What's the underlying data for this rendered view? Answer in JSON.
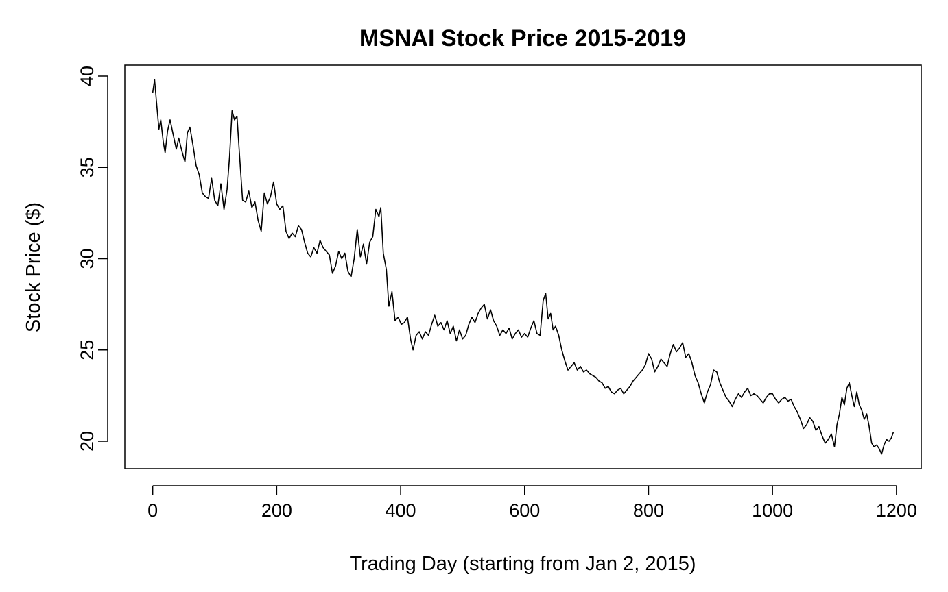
{
  "chart_data": {
    "type": "line",
    "title": "MSNAI Stock Price 2015-2019",
    "xlabel": "Trading Day (starting from Jan 2, 2015)",
    "ylabel": "Stock Price ($)",
    "xlim": [
      -45,
      1240
    ],
    "ylim": [
      18.5,
      40.6
    ],
    "x_ticks": [
      0,
      200,
      400,
      600,
      800,
      1000,
      1200
    ],
    "y_ticks": [
      20,
      25,
      30,
      35,
      40
    ],
    "grid": false,
    "legend": "none",
    "series": [
      {
        "color": "#000000",
        "points": [
          [
            0,
            39.1
          ],
          [
            3,
            39.8
          ],
          [
            6,
            38.6
          ],
          [
            10,
            37.1
          ],
          [
            13,
            37.6
          ],
          [
            17,
            36.4
          ],
          [
            20,
            35.8
          ],
          [
            24,
            37.0
          ],
          [
            28,
            37.6
          ],
          [
            33,
            36.8
          ],
          [
            38,
            36.0
          ],
          [
            42,
            36.6
          ],
          [
            47,
            35.9
          ],
          [
            52,
            35.3
          ],
          [
            56,
            36.9
          ],
          [
            60,
            37.2
          ],
          [
            65,
            36.2
          ],
          [
            70,
            35.1
          ],
          [
            75,
            34.6
          ],
          [
            80,
            33.6
          ],
          [
            85,
            33.4
          ],
          [
            90,
            33.3
          ],
          [
            95,
            34.4
          ],
          [
            100,
            33.2
          ],
          [
            105,
            32.9
          ],
          [
            110,
            34.1
          ],
          [
            115,
            32.7
          ],
          [
            120,
            33.8
          ],
          [
            124,
            35.6
          ],
          [
            128,
            38.1
          ],
          [
            132,
            37.6
          ],
          [
            136,
            37.8
          ],
          [
            140,
            35.7
          ],
          [
            145,
            33.2
          ],
          [
            150,
            33.1
          ],
          [
            155,
            33.7
          ],
          [
            160,
            32.8
          ],
          [
            165,
            33.1
          ],
          [
            170,
            32.1
          ],
          [
            175,
            31.5
          ],
          [
            180,
            33.6
          ],
          [
            185,
            33.0
          ],
          [
            190,
            33.4
          ],
          [
            195,
            34.2
          ],
          [
            200,
            33.0
          ],
          [
            205,
            32.7
          ],
          [
            210,
            32.9
          ],
          [
            215,
            31.5
          ],
          [
            220,
            31.1
          ],
          [
            225,
            31.4
          ],
          [
            230,
            31.2
          ],
          [
            235,
            31.8
          ],
          [
            240,
            31.6
          ],
          [
            245,
            30.9
          ],
          [
            250,
            30.3
          ],
          [
            255,
            30.1
          ],
          [
            260,
            30.6
          ],
          [
            265,
            30.3
          ],
          [
            270,
            31.0
          ],
          [
            275,
            30.6
          ],
          [
            280,
            30.4
          ],
          [
            285,
            30.2
          ],
          [
            290,
            29.2
          ],
          [
            295,
            29.6
          ],
          [
            300,
            30.4
          ],
          [
            305,
            30.0
          ],
          [
            310,
            30.3
          ],
          [
            315,
            29.3
          ],
          [
            320,
            29.0
          ],
          [
            325,
            30.0
          ],
          [
            330,
            31.6
          ],
          [
            335,
            30.1
          ],
          [
            340,
            30.8
          ],
          [
            345,
            29.7
          ],
          [
            350,
            30.9
          ],
          [
            355,
            31.2
          ],
          [
            360,
            32.7
          ],
          [
            365,
            32.3
          ],
          [
            368,
            32.8
          ],
          [
            372,
            30.3
          ],
          [
            377,
            29.4
          ],
          [
            381,
            27.4
          ],
          [
            386,
            28.2
          ],
          [
            391,
            26.6
          ],
          [
            396,
            26.8
          ],
          [
            401,
            26.4
          ],
          [
            406,
            26.5
          ],
          [
            411,
            26.8
          ],
          [
            416,
            25.6
          ],
          [
            420,
            25.0
          ],
          [
            425,
            25.8
          ],
          [
            430,
            26.0
          ],
          [
            435,
            25.6
          ],
          [
            440,
            26.0
          ],
          [
            445,
            25.8
          ],
          [
            450,
            26.4
          ],
          [
            455,
            26.9
          ],
          [
            460,
            26.3
          ],
          [
            465,
            26.5
          ],
          [
            470,
            26.1
          ],
          [
            475,
            26.6
          ],
          [
            480,
            25.9
          ],
          [
            485,
            26.3
          ],
          [
            490,
            25.5
          ],
          [
            495,
            26.1
          ],
          [
            500,
            25.6
          ],
          [
            505,
            25.8
          ],
          [
            510,
            26.4
          ],
          [
            515,
            26.8
          ],
          [
            520,
            26.5
          ],
          [
            525,
            27.0
          ],
          [
            530,
            27.3
          ],
          [
            535,
            27.5
          ],
          [
            540,
            26.7
          ],
          [
            545,
            27.2
          ],
          [
            550,
            26.6
          ],
          [
            555,
            26.3
          ],
          [
            560,
            25.8
          ],
          [
            565,
            26.1
          ],
          [
            570,
            25.9
          ],
          [
            575,
            26.2
          ],
          [
            580,
            25.6
          ],
          [
            585,
            25.9
          ],
          [
            590,
            26.1
          ],
          [
            595,
            25.7
          ],
          [
            600,
            25.9
          ],
          [
            605,
            25.7
          ],
          [
            610,
            26.2
          ],
          [
            615,
            26.6
          ],
          [
            620,
            25.9
          ],
          [
            625,
            25.8
          ],
          [
            630,
            27.7
          ],
          [
            634,
            28.1
          ],
          [
            638,
            26.7
          ],
          [
            642,
            27.0
          ],
          [
            646,
            26.1
          ],
          [
            650,
            26.3
          ],
          [
            655,
            25.8
          ],
          [
            660,
            25.0
          ],
          [
            665,
            24.4
          ],
          [
            670,
            23.9
          ],
          [
            675,
            24.1
          ],
          [
            680,
            24.3
          ],
          [
            685,
            23.9
          ],
          [
            690,
            24.1
          ],
          [
            695,
            23.8
          ],
          [
            700,
            23.9
          ],
          [
            705,
            23.7
          ],
          [
            710,
            23.6
          ],
          [
            715,
            23.5
          ],
          [
            720,
            23.3
          ],
          [
            725,
            23.2
          ],
          [
            730,
            22.9
          ],
          [
            735,
            23.0
          ],
          [
            740,
            22.7
          ],
          [
            745,
            22.6
          ],
          [
            750,
            22.8
          ],
          [
            755,
            22.9
          ],
          [
            760,
            22.6
          ],
          [
            765,
            22.8
          ],
          [
            770,
            23.0
          ],
          [
            775,
            23.3
          ],
          [
            780,
            23.5
          ],
          [
            785,
            23.7
          ],
          [
            790,
            23.9
          ],
          [
            795,
            24.2
          ],
          [
            800,
            24.8
          ],
          [
            805,
            24.5
          ],
          [
            810,
            23.8
          ],
          [
            815,
            24.1
          ],
          [
            820,
            24.5
          ],
          [
            825,
            24.3
          ],
          [
            830,
            24.1
          ],
          [
            835,
            24.8
          ],
          [
            840,
            25.3
          ],
          [
            845,
            24.9
          ],
          [
            850,
            25.1
          ],
          [
            855,
            25.4
          ],
          [
            860,
            24.6
          ],
          [
            865,
            24.8
          ],
          [
            870,
            24.3
          ],
          [
            875,
            23.6
          ],
          [
            880,
            23.2
          ],
          [
            885,
            22.6
          ],
          [
            890,
            22.1
          ],
          [
            895,
            22.7
          ],
          [
            900,
            23.1
          ],
          [
            905,
            23.9
          ],
          [
            910,
            23.8
          ],
          [
            915,
            23.2
          ],
          [
            920,
            22.8
          ],
          [
            925,
            22.4
          ],
          [
            930,
            22.2
          ],
          [
            935,
            21.9
          ],
          [
            940,
            22.3
          ],
          [
            945,
            22.6
          ],
          [
            950,
            22.4
          ],
          [
            955,
            22.7
          ],
          [
            960,
            22.9
          ],
          [
            965,
            22.5
          ],
          [
            970,
            22.6
          ],
          [
            975,
            22.5
          ],
          [
            980,
            22.3
          ],
          [
            985,
            22.1
          ],
          [
            990,
            22.4
          ],
          [
            995,
            22.6
          ],
          [
            1000,
            22.6
          ],
          [
            1005,
            22.3
          ],
          [
            1010,
            22.1
          ],
          [
            1015,
            22.3
          ],
          [
            1020,
            22.4
          ],
          [
            1025,
            22.2
          ],
          [
            1030,
            22.3
          ],
          [
            1035,
            21.9
          ],
          [
            1040,
            21.6
          ],
          [
            1045,
            21.2
          ],
          [
            1050,
            20.7
          ],
          [
            1055,
            20.9
          ],
          [
            1060,
            21.3
          ],
          [
            1065,
            21.1
          ],
          [
            1070,
            20.6
          ],
          [
            1075,
            20.8
          ],
          [
            1080,
            20.3
          ],
          [
            1085,
            19.9
          ],
          [
            1090,
            20.1
          ],
          [
            1095,
            20.4
          ],
          [
            1100,
            19.7
          ],
          [
            1104,
            20.9
          ],
          [
            1108,
            21.5
          ],
          [
            1112,
            22.4
          ],
          [
            1116,
            22.0
          ],
          [
            1120,
            22.9
          ],
          [
            1124,
            23.2
          ],
          [
            1128,
            22.5
          ],
          [
            1132,
            21.9
          ],
          [
            1136,
            22.7
          ],
          [
            1140,
            22.0
          ],
          [
            1144,
            21.7
          ],
          [
            1148,
            21.2
          ],
          [
            1152,
            21.5
          ],
          [
            1156,
            20.8
          ],
          [
            1160,
            19.9
          ],
          [
            1164,
            19.7
          ],
          [
            1168,
            19.8
          ],
          [
            1172,
            19.6
          ],
          [
            1176,
            19.3
          ],
          [
            1180,
            19.8
          ],
          [
            1184,
            20.1
          ],
          [
            1188,
            20.0
          ],
          [
            1192,
            20.2
          ],
          [
            1195,
            20.5
          ]
        ]
      }
    ]
  }
}
